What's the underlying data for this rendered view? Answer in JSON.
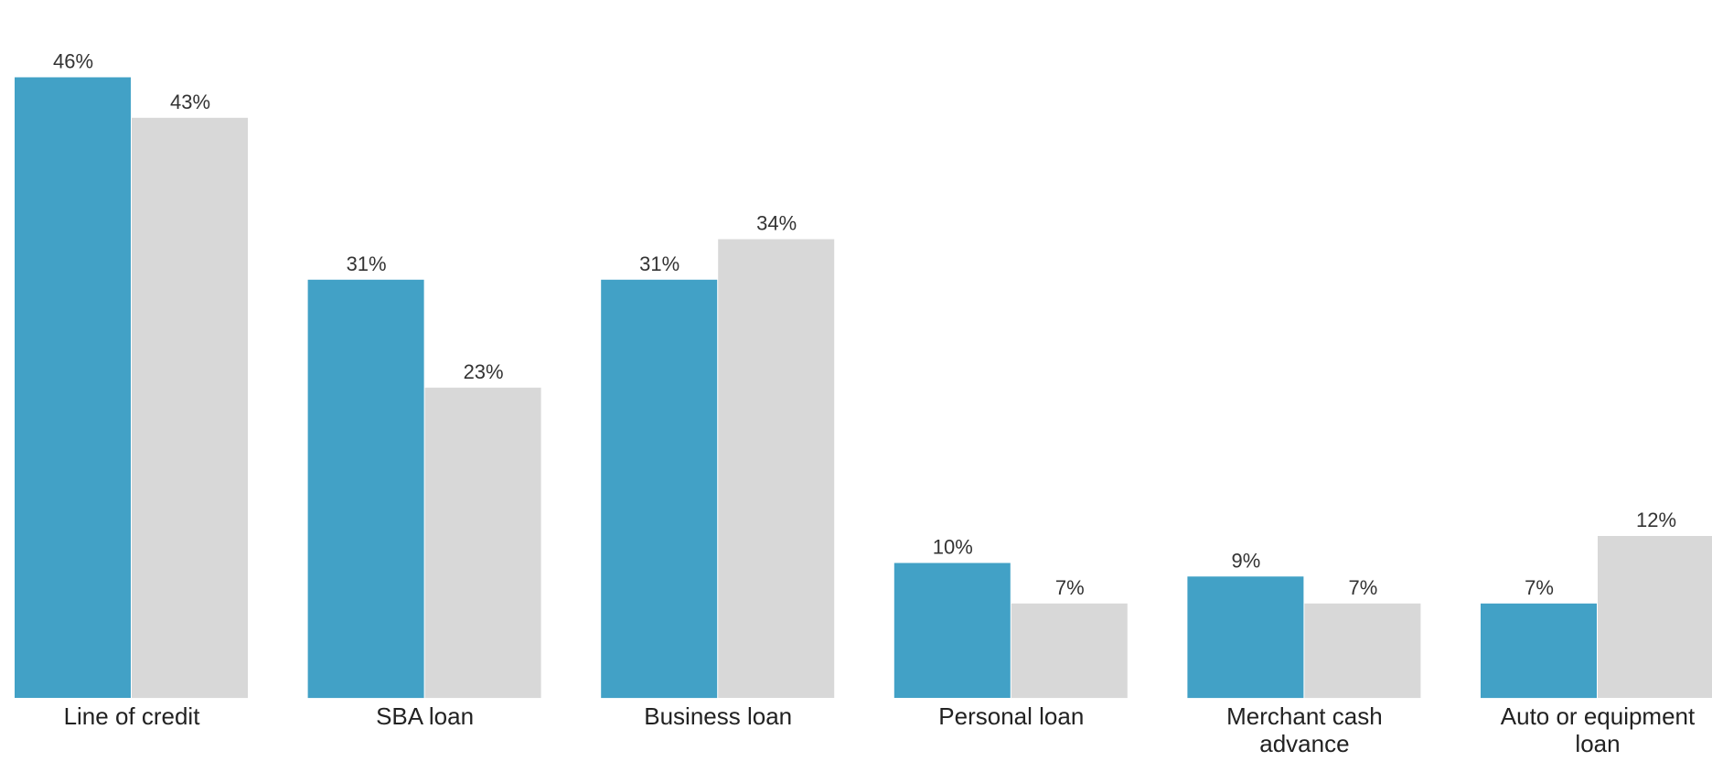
{
  "chart_data": {
    "type": "bar",
    "categories": [
      [
        "Line of credit"
      ],
      [
        "SBA loan"
      ],
      [
        "Business loan"
      ],
      [
        "Personal loan"
      ],
      [
        "Merchant cash",
        "advance"
      ],
      [
        "Auto or equipment",
        "loan"
      ]
    ],
    "series": [
      {
        "values": [
          46,
          31,
          31,
          10,
          9,
          7
        ],
        "color": "#42a1c6"
      },
      {
        "values": [
          43,
          23,
          34,
          7,
          7,
          12
        ],
        "color": "#d8d8d8"
      }
    ],
    "value_suffix": "%",
    "ylim": [
      0,
      48
    ],
    "grid": false,
    "legend": "none"
  }
}
